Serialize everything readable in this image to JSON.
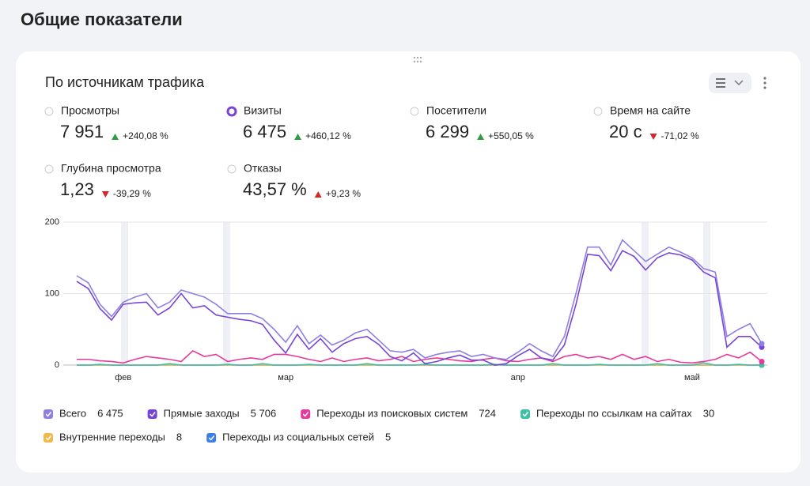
{
  "page_title": "Общие показатели",
  "card_title": "По источникам трафика",
  "metrics": [
    {
      "label": "Просмотры",
      "value": "7 951",
      "change": "+240,08 %",
      "trend": "up",
      "color": "#2e9e43",
      "selected": false
    },
    {
      "label": "Визиты",
      "value": "6 475",
      "change": "+460,12 %",
      "trend": "up",
      "color": "#2e9e43",
      "selected": true
    },
    {
      "label": "Посетители",
      "value": "6 299",
      "change": "+550,05 %",
      "trend": "up",
      "color": "#2e9e43",
      "selected": false
    },
    {
      "label": "Время на сайте",
      "value": "20 с",
      "change": "-71,02 %",
      "trend": "down",
      "color": "#d02a2a",
      "selected": false
    },
    {
      "label": "Глубина просмотра",
      "value": "1,23",
      "change": "-39,29 %",
      "trend": "down",
      "color": "#d02a2a",
      "selected": false
    },
    {
      "label": "Отказы",
      "value": "43,57 %",
      "change": "+9,23 %",
      "trend": "up",
      "color": "#d02a2a",
      "selected": false
    }
  ],
  "chart_data": {
    "type": "line",
    "categories": [
      null,
      null,
      null,
      null,
      "фев",
      null,
      null,
      null,
      null,
      null,
      null,
      null,
      null,
      null,
      null,
      null,
      null,
      null,
      "мар",
      null,
      null,
      null,
      null,
      null,
      null,
      null,
      null,
      null,
      null,
      null,
      null,
      null,
      null,
      null,
      null,
      null,
      null,
      null,
      "апр",
      null,
      null,
      null,
      null,
      null,
      null,
      null,
      null,
      null,
      null,
      null,
      null,
      null,
      null,
      "май",
      null,
      null,
      null,
      null,
      null,
      null
    ],
    "ylim": [
      0,
      200
    ],
    "yticks": [
      0,
      100,
      200
    ],
    "grid": true,
    "series": [
      {
        "name": "Всего",
        "total": "6 475",
        "color": "#8d80e2",
        "values": [
          125,
          115,
          85,
          68,
          88,
          95,
          100,
          80,
          88,
          105,
          100,
          95,
          85,
          72,
          72,
          72,
          65,
          50,
          32,
          55,
          30,
          42,
          28,
          35,
          45,
          50,
          35,
          20,
          18,
          22,
          10,
          15,
          18,
          20,
          12,
          15,
          10,
          8,
          18,
          30,
          20,
          12,
          40,
          100,
          165,
          165,
          140,
          175,
          160,
          145,
          155,
          165,
          158,
          150,
          135,
          130,
          40,
          50,
          58,
          30
        ]
      },
      {
        "name": "Прямые заходы",
        "total": "5 706",
        "color": "#7745d6",
        "values": [
          117,
          107,
          79,
          63,
          85,
          87,
          88,
          70,
          80,
          100,
          80,
          83,
          70,
          67,
          64,
          62,
          57,
          35,
          17,
          43,
          22,
          37,
          18,
          30,
          37,
          40,
          29,
          12,
          6,
          17,
          2,
          5,
          10,
          14,
          7,
          7,
          0,
          2,
          13,
          22,
          10,
          7,
          28,
          85,
          155,
          153,
          132,
          160,
          152,
          133,
          150,
          157,
          154,
          147,
          130,
          122,
          25,
          40,
          40,
          25
        ]
      },
      {
        "name": "Переходы из поисковых систем",
        "total": "724",
        "color": "#e6399b",
        "values": [
          8,
          8,
          6,
          5,
          3,
          8,
          12,
          10,
          8,
          5,
          20,
          12,
          15,
          5,
          8,
          10,
          8,
          15,
          15,
          12,
          8,
          5,
          10,
          5,
          8,
          10,
          6,
          8,
          12,
          5,
          8,
          10,
          8,
          6,
          5,
          8,
          10,
          6,
          5,
          8,
          10,
          5,
          12,
          15,
          10,
          12,
          8,
          15,
          8,
          12,
          5,
          8,
          4,
          3,
          5,
          8,
          15,
          10,
          18,
          5
        ]
      },
      {
        "name": "Переходы по ссылкам на сайтах",
        "total": "30",
        "color": "#3fbfa5",
        "values": [
          0,
          0,
          1,
          0,
          0,
          0,
          0,
          0,
          2,
          0,
          0,
          0,
          0,
          1,
          0,
          0,
          2,
          0,
          0,
          0,
          1,
          0,
          0,
          0,
          0,
          2,
          0,
          0,
          0,
          0,
          1,
          0,
          0,
          0,
          0,
          0,
          1,
          0,
          0,
          0,
          0,
          2,
          0,
          0,
          0,
          1,
          0,
          0,
          0,
          0,
          2,
          0,
          0,
          0,
          3,
          0,
          0,
          1,
          0,
          0
        ]
      },
      {
        "name": "Внутренние переходы",
        "total": "8",
        "color": "#f2b94a",
        "values": [
          0,
          0,
          0,
          0,
          0,
          0,
          0,
          0,
          0,
          0,
          0,
          0,
          0,
          0,
          0,
          0,
          0,
          0,
          0,
          0,
          0,
          0,
          0,
          0,
          0,
          0,
          0,
          0,
          0,
          0,
          0,
          0,
          0,
          0,
          0,
          0,
          0,
          0,
          0,
          0,
          0,
          0,
          0,
          0,
          0,
          0,
          0,
          0,
          0,
          0,
          0,
          0,
          0,
          0,
          0,
          0,
          0,
          0,
          0,
          0
        ]
      },
      {
        "name": "Переходы из социальных сетей",
        "total": "5",
        "color": "#3d7ee6",
        "values": [
          0,
          0,
          0,
          0,
          0,
          0,
          0,
          0,
          0,
          0,
          0,
          0,
          0,
          0,
          0,
          0,
          0,
          0,
          0,
          0,
          0,
          0,
          0,
          0,
          0,
          0,
          0,
          0,
          0,
          0,
          0,
          0,
          0,
          0,
          0,
          0,
          0,
          0,
          0,
          0,
          0,
          0,
          0,
          0,
          0,
          0,
          0,
          0,
          0,
          0,
          0,
          0,
          0,
          0,
          0,
          0,
          0,
          0,
          0,
          0
        ]
      }
    ]
  }
}
